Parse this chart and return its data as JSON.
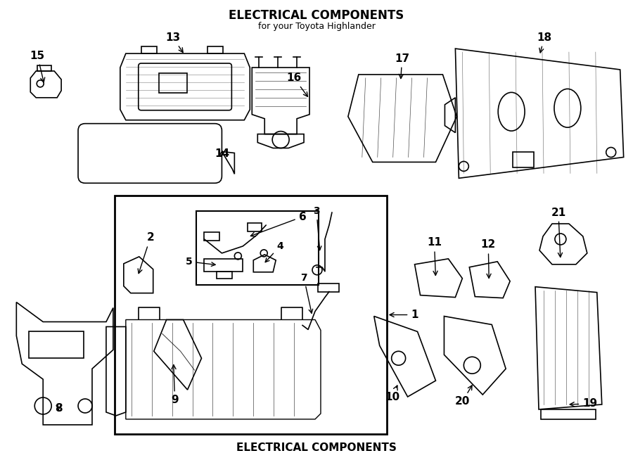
{
  "title": "ELECTRICAL COMPONENTS",
  "subtitle": "for your Toyota Highlander",
  "bg_color": "#ffffff",
  "line_color": "#000000",
  "fig_width": 9.0,
  "fig_height": 6.61,
  "dpi": 100
}
